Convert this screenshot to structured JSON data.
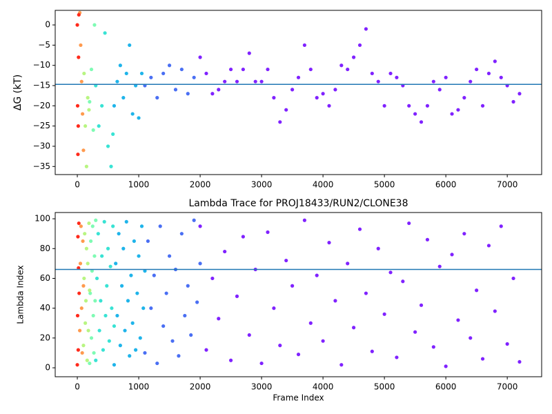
{
  "chart_data": [
    {
      "type": "scatter",
      "ylabel": "ΔG (kT)",
      "xlim": [
        -360,
        7560
      ],
      "ylim": [
        -37,
        3.6
      ],
      "xticks": [
        0,
        1000,
        2000,
        3000,
        4000,
        5000,
        6000,
        7000
      ],
      "yticks": [
        {
          "value": -35,
          "label": "−35"
        },
        {
          "value": -30,
          "label": "−30"
        },
        {
          "value": -25,
          "label": "−25"
        },
        {
          "value": -20,
          "label": "−20"
        },
        {
          "value": -15,
          "label": "−15"
        },
        {
          "value": -10,
          "label": "−10"
        },
        {
          "value": -5,
          "label": "−5"
        },
        0
      ],
      "hline": -14.7,
      "hline_color": "#1f77b4",
      "series": [
        {
          "color": "#8022ff",
          "x": [
            2000,
            2100,
            2200,
            2300,
            2400,
            2500,
            2600,
            2700,
            2800,
            2900,
            3000,
            3100,
            3200,
            3300,
            3400,
            3500,
            3600,
            3700,
            3800,
            3900,
            4000,
            4100,
            4200,
            4300,
            4400,
            4500,
            4600,
            4700,
            4800,
            4900,
            5000,
            5100,
            5200,
            5300,
            5400,
            5500,
            5600,
            5700,
            5800,
            5900,
            6000,
            6100,
            6200,
            6300,
            6400,
            6500,
            6600,
            6700,
            6800,
            6900,
            7000,
            7100,
            7200
          ],
          "values": [
            -8,
            -12,
            -17,
            -16,
            -14,
            -11,
            -14,
            -11,
            -7,
            -14,
            -14,
            -11,
            -18,
            -24,
            -21,
            -16,
            -13,
            -5,
            -11,
            -18,
            -17,
            -20,
            -16,
            -10,
            -11,
            -8,
            -5,
            -1,
            -12,
            -14,
            -20,
            -12,
            -13,
            -15,
            -20,
            -22,
            -24,
            -20,
            -14,
            -16,
            -13,
            -22,
            -21,
            -18,
            -14,
            -11,
            -20,
            -12,
            -9,
            -13,
            -15,
            -19,
            -17
          ]
        },
        {
          "color": "#4a6ff3",
          "x": [
            1100,
            1200,
            1300,
            1400,
            1500,
            1600,
            1700,
            1800,
            1900
          ],
          "values": [
            -15,
            -13,
            -18,
            -12,
            -10,
            -16,
            -11,
            -17,
            -13
          ]
        },
        {
          "color": "#1fb4ea",
          "x": [
            600,
            650,
            700,
            750,
            800,
            850,
            900,
            950,
            1000,
            1050
          ],
          "values": [
            -20,
            -14,
            -10,
            -18,
            -12,
            -5,
            -22,
            -15,
            -23,
            -12
          ]
        },
        {
          "color": "#39e3d4",
          "x": [
            300,
            350,
            400,
            450,
            500,
            550,
            580
          ],
          "values": [
            -15,
            -25,
            -20,
            -2,
            -30,
            -35,
            -27
          ]
        },
        {
          "color": "#7ffbb4",
          "x": [
            200,
            230,
            260,
            280
          ],
          "values": [
            -19,
            -11,
            -26,
            0
          ]
        },
        {
          "color": "#b8f582",
          "x": [
            110,
            130,
            150,
            170,
            190
          ],
          "values": [
            -12,
            -25,
            -35,
            -18,
            -21
          ]
        },
        {
          "color": "#ff9a4e",
          "x": [
            40,
            55,
            70,
            85,
            100
          ],
          "values": [
            3,
            -5,
            -14,
            -22,
            -31
          ]
        },
        {
          "color": "#ff2a1b",
          "x": [
            0,
            5,
            10,
            15,
            20,
            25
          ],
          "values": [
            0,
            -20,
            -32,
            -25,
            -8,
            2.5
          ]
        }
      ]
    },
    {
      "type": "scatter",
      "title": "Lambda Trace for PROJ18433/RUN2/CLONE38",
      "xlabel": "Frame Index",
      "ylabel": "Lambda Index",
      "xlim": [
        -360,
        7560
      ],
      "ylim": [
        -6,
        104.2
      ],
      "xticks": [
        0,
        1000,
        2000,
        3000,
        4000,
        5000,
        6000,
        7000
      ],
      "yticks": [
        0,
        20,
        40,
        60,
        80,
        100
      ],
      "hline": 66,
      "hline_color": "#1f77b4",
      "series": [
        {
          "color": "#8022ff",
          "x": [
            2000,
            2100,
            2200,
            2300,
            2400,
            2500,
            2600,
            2700,
            2800,
            2900,
            3000,
            3100,
            3200,
            3300,
            3400,
            3500,
            3600,
            3700,
            3800,
            3900,
            4000,
            4100,
            4200,
            4300,
            4400,
            4500,
            4600,
            4700,
            4800,
            4900,
            5000,
            5100,
            5200,
            5300,
            5400,
            5500,
            5600,
            5700,
            5800,
            5900,
            6000,
            6100,
            6200,
            6300,
            6400,
            6500,
            6600,
            6700,
            6800,
            6900,
            7000,
            7100,
            7200
          ],
          "values": [
            95,
            12,
            60,
            33,
            78,
            5,
            48,
            88,
            22,
            66,
            3,
            91,
            40,
            15,
            72,
            55,
            9,
            99,
            30,
            62,
            18,
            84,
            45,
            2,
            70,
            27,
            93,
            50,
            11,
            80,
            36,
            64,
            7,
            58,
            97,
            24,
            42,
            86,
            14,
            68,
            1,
            76,
            32,
            90,
            20,
            52,
            6,
            82,
            38,
            95,
            16,
            60,
            4
          ]
        },
        {
          "color": "#4a6ff3",
          "x": [
            1100,
            1150,
            1200,
            1250,
            1300,
            1350,
            1400,
            1450,
            1500,
            1550,
            1600,
            1650,
            1700,
            1750,
            1800,
            1850,
            1900,
            1950,
            2000
          ],
          "values": [
            10,
            85,
            40,
            62,
            3,
            95,
            28,
            50,
            75,
            18,
            66,
            8,
            90,
            35,
            55,
            22,
            99,
            44,
            70
          ]
        },
        {
          "color": "#1fb4ea",
          "x": [
            600,
            625,
            650,
            675,
            700,
            725,
            750,
            775,
            800,
            825,
            850,
            875,
            900,
            925,
            950,
            975,
            1000,
            1025,
            1050,
            1075,
            1100
          ],
          "values": [
            2,
            70,
            35,
            90,
            15,
            55,
            80,
            25,
            98,
            45,
            8,
            62,
            30,
            85,
            12,
            50,
            75,
            20,
            95,
            40,
            65
          ]
        },
        {
          "color": "#39e3d4",
          "x": [
            300,
            320,
            340,
            360,
            380,
            400,
            420,
            440,
            460,
            480,
            500,
            520,
            540,
            560,
            580,
            600
          ],
          "values": [
            5,
            60,
            90,
            25,
            45,
            75,
            12,
            98,
            35,
            55,
            80,
            18,
            68,
            40,
            95,
            28
          ]
        },
        {
          "color": "#7ffbb4",
          "x": [
            200,
            210,
            220,
            230,
            240,
            250,
            260,
            270,
            280,
            290,
            300
          ],
          "values": [
            3,
            50,
            85,
            20,
            65,
            95,
            35,
            10,
            75,
            45,
            99
          ]
        },
        {
          "color": "#b8f582",
          "x": [
            100,
            110,
            120,
            130,
            140,
            150,
            160,
            170,
            180,
            190,
            200
          ],
          "values": [
            15,
            60,
            90,
            30,
            45,
            80,
            5,
            70,
            25,
            97,
            52
          ]
        },
        {
          "color": "#ff9a4e",
          "x": [
            40,
            50,
            60,
            70,
            80,
            90,
            100
          ],
          "values": [
            25,
            70,
            95,
            40,
            10,
            85,
            55
          ]
        },
        {
          "color": "#ff2a1b",
          "x": [
            0,
            5,
            10,
            15,
            20,
            25,
            30
          ],
          "values": [
            2,
            35,
            88,
            12,
            67,
            97,
            50
          ]
        }
      ]
    }
  ]
}
